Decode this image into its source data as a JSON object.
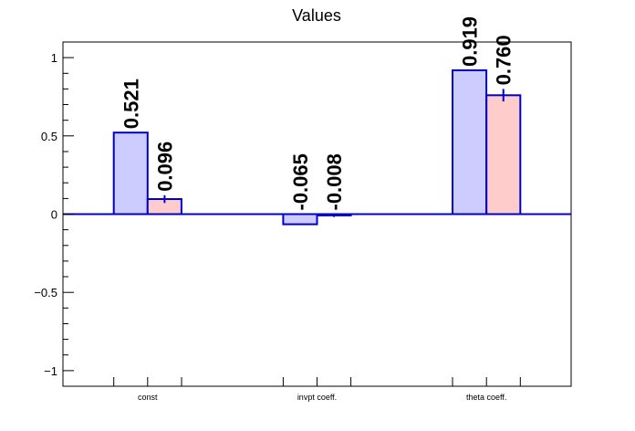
{
  "chart_data": {
    "type": "bar",
    "title": "Values",
    "xlabel": "",
    "ylabel": "",
    "categories": [
      "const",
      "invpt coeff.",
      "theta coeff."
    ],
    "ylim": [
      -1.1,
      1.1
    ],
    "yticks": [
      -1,
      -0.5,
      0,
      0.5,
      1
    ],
    "ytick_labels": [
      "−1",
      "−0.5",
      "0",
      "0.5",
      "1"
    ],
    "grid": false,
    "series": [
      {
        "values": [
          0.521,
          -0.065,
          0.919
        ],
        "labels": [
          "0.521",
          "-0.065",
          "0.919"
        ],
        "errors": [
          0,
          0,
          0
        ],
        "fill": "#ccccff",
        "stroke": "#0000cc"
      },
      {
        "values": [
          0.096,
          -0.008,
          0.76
        ],
        "labels": [
          "0.096",
          "-0.008",
          "0.760"
        ],
        "errors": [
          0.025,
          0.01,
          0.04
        ],
        "fill": "#ffcccc",
        "stroke": "#0000cc"
      }
    ],
    "zero_line_color": "#0000cc"
  }
}
